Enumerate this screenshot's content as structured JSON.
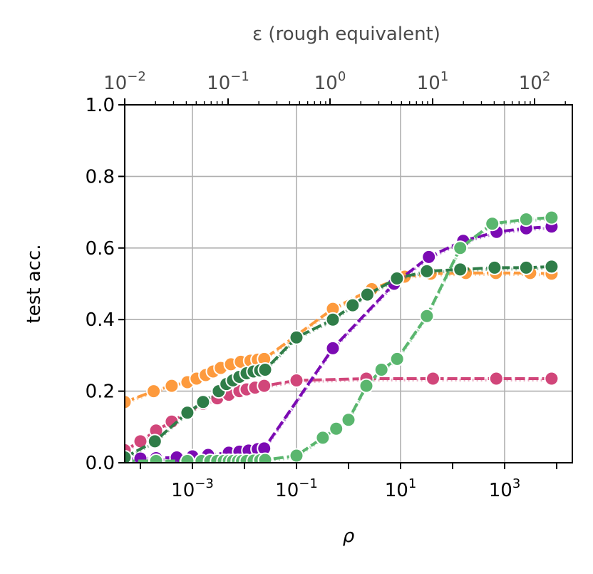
{
  "chart_data": {
    "type": "line",
    "xlabel": "ρ",
    "ylabel": "test acc.",
    "top_xlabel": "ε (rough equivalent)",
    "x_scale": "log",
    "xlim": [
      5e-05,
      20000
    ],
    "ylim": [
      0.0,
      1.0
    ],
    "grid": true,
    "y_ticks": [
      "0.0",
      "0.2",
      "0.4",
      "0.6",
      "0.8",
      "1.0"
    ],
    "x_ticks": [
      {
        "base": "10",
        "exp": "−3"
      },
      {
        "base": "10",
        "exp": "−1"
      },
      {
        "base": "10",
        "exp": "1"
      },
      {
        "base": "10",
        "exp": "3"
      }
    ],
    "top_ticks": [
      {
        "base": "10",
        "exp": "−2"
      },
      {
        "base": "10",
        "exp": "−1"
      },
      {
        "base": "10",
        "exp": "0"
      },
      {
        "base": "10",
        "exp": "1"
      },
      {
        "base": "10",
        "exp": "2"
      }
    ],
    "series": [
      {
        "color": "#d1467a",
        "x": [
          5e-05,
          0.0001,
          0.0002,
          0.0004,
          0.0008,
          0.0016,
          0.003,
          0.005,
          0.008,
          0.011,
          0.016,
          0.024,
          0.1,
          2.2,
          42,
          690,
          8000
        ],
        "y": [
          0.035,
          0.06,
          0.09,
          0.115,
          0.14,
          0.165,
          0.18,
          0.19,
          0.2,
          0.205,
          0.21,
          0.215,
          0.23,
          0.235,
          0.235,
          0.235,
          0.235
        ]
      },
      {
        "color": "#fd9a3d",
        "x": [
          5e-05,
          0.00018,
          0.0004,
          0.0008,
          0.0012,
          0.0018,
          0.0025,
          0.0035,
          0.0055,
          0.0085,
          0.013,
          0.018,
          0.024,
          0.5,
          2.8,
          12,
          38,
          180,
          680,
          3100,
          8000
        ],
        "y": [
          0.17,
          0.2,
          0.215,
          0.225,
          0.235,
          0.245,
          0.255,
          0.265,
          0.275,
          0.282,
          0.285,
          0.288,
          0.29,
          0.43,
          0.485,
          0.52,
          0.528,
          0.53,
          0.53,
          0.53,
          0.528
        ]
      },
      {
        "color": "#7b0ab3",
        "x": [
          5e-05,
          0.0001,
          0.0002,
          0.0005,
          0.001,
          0.002,
          0.005,
          0.008,
          0.012,
          0.018,
          0.024,
          0.5,
          7.5,
          35,
          160,
          700,
          2600,
          8000
        ],
        "y": [
          0.01,
          0.012,
          0.013,
          0.015,
          0.018,
          0.022,
          0.028,
          0.031,
          0.034,
          0.038,
          0.04,
          0.32,
          0.5,
          0.575,
          0.62,
          0.645,
          0.655,
          0.66
        ]
      },
      {
        "color": "#5ab66e",
        "x": [
          5e-05,
          0.0002,
          0.0008,
          0.0015,
          0.0022,
          0.003,
          0.004,
          0.005,
          0.006,
          0.0075,
          0.009,
          0.011,
          0.015,
          0.02,
          0.025,
          0.1,
          0.32,
          0.58,
          1.0,
          2.2,
          4.3,
          8.6,
          32,
          140,
          580,
          2600,
          8000
        ],
        "y": [
          0.005,
          0.005,
          0.005,
          0.005,
          0.005,
          0.005,
          0.005,
          0.005,
          0.005,
          0.005,
          0.005,
          0.005,
          0.006,
          0.007,
          0.008,
          0.02,
          0.07,
          0.095,
          0.12,
          0.215,
          0.26,
          0.29,
          0.41,
          0.6,
          0.668,
          0.68,
          0.685
        ]
      },
      {
        "color": "#2f7d48",
        "x": [
          5e-05,
          0.00019,
          0.0008,
          0.0016,
          0.0032,
          0.0045,
          0.006,
          0.008,
          0.011,
          0.015,
          0.02,
          0.025,
          0.1,
          0.5,
          1.2,
          2.3,
          8.5,
          32,
          140,
          640,
          2600,
          8000
        ],
        "y": [
          0.015,
          0.06,
          0.14,
          0.17,
          0.2,
          0.22,
          0.23,
          0.24,
          0.25,
          0.255,
          0.258,
          0.26,
          0.35,
          0.4,
          0.44,
          0.47,
          0.515,
          0.535,
          0.54,
          0.545,
          0.545,
          0.548
        ]
      }
    ]
  }
}
